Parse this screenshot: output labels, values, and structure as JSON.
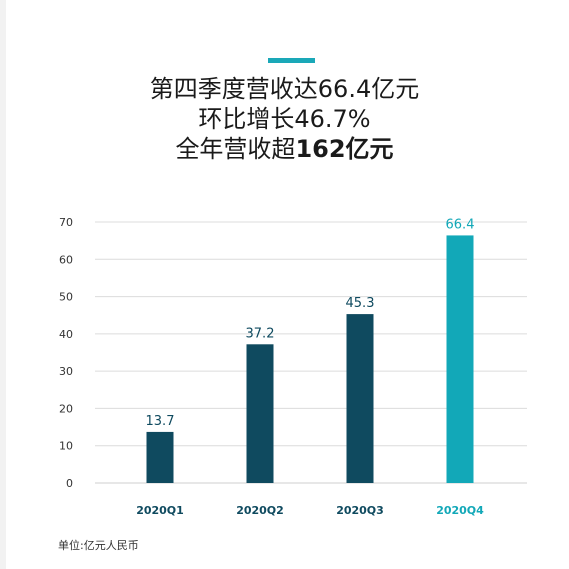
{
  "headline": {
    "line1": "第四季度营收达66.4亿元",
    "line2": "环比增长46.7%",
    "line3_prefix": "全年营收超",
    "line3_bold": "162亿元"
  },
  "unit_note": "单位:亿元人民币",
  "colors": {
    "accent": "#1aa8b8",
    "bar_dark": "#0f4a5f",
    "bar_highlight": "#12a8b8",
    "label_dark": "#0f4a5f",
    "label_highlight": "#12a8b8",
    "grid": "#dcdcdc",
    "axis_text": "#333333"
  },
  "chart_data": {
    "type": "bar",
    "categories": [
      "2020Q1",
      "2020Q2",
      "2020Q3",
      "2020Q4"
    ],
    "values": [
      13.7,
      37.2,
      45.3,
      66.4
    ],
    "data_labels": [
      "13.7",
      "37.2",
      "45.3",
      "66.4"
    ],
    "highlight_index": 3,
    "ylim": [
      0,
      70
    ],
    "yticks": [
      0,
      10,
      20,
      30,
      40,
      50,
      60,
      70
    ],
    "grid": true,
    "legend": "none"
  }
}
